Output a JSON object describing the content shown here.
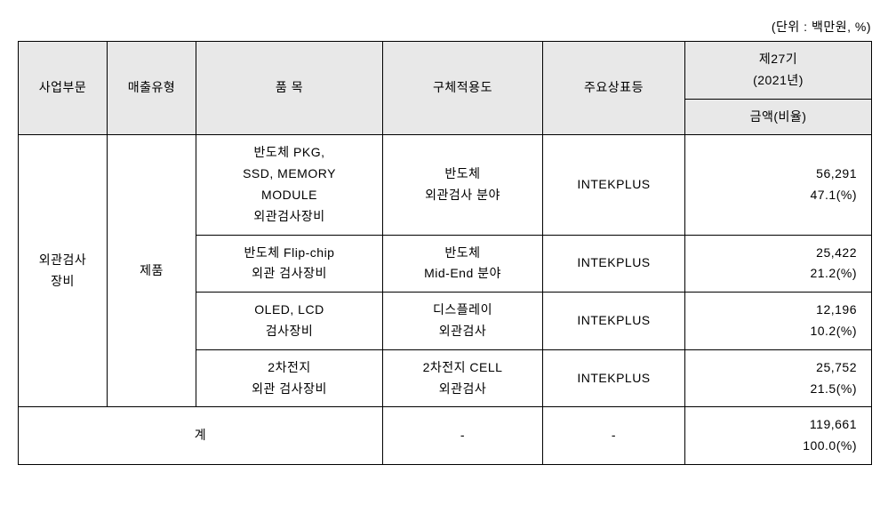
{
  "unit_label": "(단위 : 백만원, %)",
  "headers": {
    "biz_div": "사업부문",
    "sales_type": "매출유형",
    "item": "품 목",
    "use": "구체적용도",
    "brand": "주요상표등",
    "period_line1": "제27기",
    "period_line2": "(2021년)",
    "amount_ratio": "금액(비율)"
  },
  "group": {
    "biz_div_line1": "외관검사",
    "biz_div_line2": "장비",
    "sales_type": "제품"
  },
  "rows": [
    {
      "item_l1": "반도체 PKG,",
      "item_l2": "SSD, MEMORY",
      "item_l3": "MODULE",
      "item_l4": "외관검사장비",
      "use_l1": "반도체",
      "use_l2": "외관검사 분야",
      "brand": "INTEKPLUS",
      "amount": "56,291",
      "ratio": "47.1(%)"
    },
    {
      "item_l1": "반도체 Flip-chip",
      "item_l2": "외관 검사장비",
      "use_l1": "반도체",
      "use_l2": "Mid-End 분야",
      "brand": "INTEKPLUS",
      "amount": "25,422",
      "ratio": "21.2(%)"
    },
    {
      "item_l1": "OLED, LCD",
      "item_l2": "검사장비",
      "use_l1": "디스플레이",
      "use_l2": "외관검사",
      "brand": "INTEKPLUS",
      "amount": "12,196",
      "ratio": "10.2(%)"
    },
    {
      "item_l1": "2차전지",
      "item_l2": "외관 검사장비",
      "use_l1": "2차전지 CELL",
      "use_l2": "외관검사",
      "brand": "INTEKPLUS",
      "amount": "25,752",
      "ratio": "21.5(%)"
    }
  ],
  "total": {
    "label": "계",
    "use": "-",
    "brand": "-",
    "amount": "119,661",
    "ratio": "100.0(%)"
  },
  "colors": {
    "header_bg": "#e8e8e8",
    "border": "#000000",
    "text": "#000000",
    "background": "#ffffff"
  }
}
